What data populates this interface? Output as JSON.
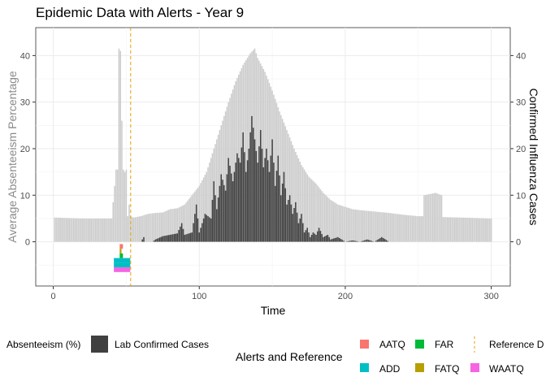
{
  "chart_data": {
    "type": "bar",
    "title": "Epidemic Data with Alerts - Year 9",
    "xlabel": "Time",
    "ylabel_left": "Average Absenteeism Percentage",
    "ylabel_right": "Confirmed Influenza Cases",
    "xlim": [
      -12,
      313
    ],
    "ylim": [
      -9.5,
      46
    ],
    "x_ticks": [
      0,
      100,
      200,
      300
    ],
    "y_ticks": [
      0,
      10,
      20,
      30,
      40
    ],
    "y_ticks_right": [
      0,
      10,
      20,
      30,
      40
    ],
    "grid": true,
    "reference_line": {
      "name": "Reference Date",
      "x": 53,
      "color": "#e69f00"
    },
    "absenteeism_keypoints": [
      [
        1,
        5.2
      ],
      [
        20,
        5.0
      ],
      [
        40,
        5.0
      ],
      [
        43,
        15.5
      ],
      [
        44,
        15.5
      ],
      [
        45,
        41.5
      ],
      [
        46,
        41.0
      ],
      [
        47,
        26.0
      ],
      [
        48,
        15.5
      ],
      [
        49,
        15.0
      ],
      [
        50,
        15.5
      ],
      [
        51,
        5.5
      ],
      [
        52,
        8.0
      ],
      [
        53,
        5.5
      ],
      [
        55,
        5.2
      ],
      [
        60,
        5.5
      ],
      [
        65,
        6.0
      ],
      [
        70,
        6.2
      ],
      [
        75,
        6.3
      ],
      [
        80,
        7.0
      ],
      [
        85,
        7.2
      ],
      [
        90,
        8.0
      ],
      [
        95,
        10.0
      ],
      [
        100,
        12.0
      ],
      [
        105,
        15.0
      ],
      [
        110,
        20.0
      ],
      [
        115,
        25.0
      ],
      [
        120,
        30.0
      ],
      [
        125,
        34.5
      ],
      [
        130,
        38.0
      ],
      [
        135,
        40.5
      ],
      [
        138,
        41.5
      ],
      [
        140,
        39.5
      ],
      [
        145,
        36.5
      ],
      [
        150,
        32.5
      ],
      [
        155,
        28.0
      ],
      [
        160,
        24.0
      ],
      [
        165,
        20.0
      ],
      [
        170,
        16.5
      ],
      [
        175,
        14.0
      ],
      [
        180,
        12.5
      ],
      [
        185,
        10.5
      ],
      [
        190,
        9.0
      ],
      [
        195,
        8.0
      ],
      [
        200,
        7.5
      ],
      [
        205,
        7.0
      ],
      [
        210,
        6.8
      ],
      [
        220,
        6.5
      ],
      [
        230,
        6.2
      ],
      [
        240,
        5.8
      ],
      [
        250,
        5.5
      ],
      [
        253,
        5.5
      ],
      [
        254,
        10.0
      ],
      [
        262,
        10.5
      ],
      [
        266,
        10.0
      ],
      [
        267,
        5.3
      ],
      [
        280,
        5.2
      ],
      [
        300,
        5.0
      ]
    ],
    "lab_cases_keypoints": [
      [
        1,
        0
      ],
      [
        60,
        0
      ],
      [
        62,
        1.0
      ],
      [
        63,
        0
      ],
      [
        65,
        0
      ],
      [
        68,
        0
      ],
      [
        70,
        0.5
      ],
      [
        75,
        1.2
      ],
      [
        80,
        1.5
      ],
      [
        85,
        1.8
      ],
      [
        88,
        4.0
      ],
      [
        90,
        1.5
      ],
      [
        95,
        2.0
      ],
      [
        98,
        8.0
      ],
      [
        100,
        2.0
      ],
      [
        104,
        6.0
      ],
      [
        108,
        5.0
      ],
      [
        110,
        13.0
      ],
      [
        112,
        7.0
      ],
      [
        115,
        14.5
      ],
      [
        118,
        11.0
      ],
      [
        120,
        18.0
      ],
      [
        123,
        13.0
      ],
      [
        126,
        19.0
      ],
      [
        128,
        17.0
      ],
      [
        130,
        23.5
      ],
      [
        132,
        15.0
      ],
      [
        134,
        20.0
      ],
      [
        136,
        27.0
      ],
      [
        138,
        22.0
      ],
      [
        140,
        17.0
      ],
      [
        142,
        24.0
      ],
      [
        144,
        16.0
      ],
      [
        146,
        20.0
      ],
      [
        148,
        15.0
      ],
      [
        150,
        22.0
      ],
      [
        152,
        12.0
      ],
      [
        154,
        18.5
      ],
      [
        156,
        10.0
      ],
      [
        158,
        15.0
      ],
      [
        160,
        8.0
      ],
      [
        162,
        10.0
      ],
      [
        164,
        6.0
      ],
      [
        166,
        8.5
      ],
      [
        168,
        4.0
      ],
      [
        170,
        6.0
      ],
      [
        172,
        2.0
      ],
      [
        174,
        3.0
      ],
      [
        176,
        1.0
      ],
      [
        178,
        2.0
      ],
      [
        180,
        1.5
      ],
      [
        182,
        3.0
      ],
      [
        185,
        1.0
      ],
      [
        188,
        1.5
      ],
      [
        190,
        0.5
      ],
      [
        195,
        1.0
      ],
      [
        200,
        0
      ],
      [
        205,
        0.3
      ],
      [
        210,
        0
      ],
      [
        215,
        0.5
      ],
      [
        220,
        0
      ],
      [
        225,
        1.0
      ],
      [
        230,
        0
      ],
      [
        300,
        0
      ]
    ],
    "alerts": {
      "title": "Alerts and Reference",
      "types": [
        {
          "name": "AATQ",
          "color": "#f8766d"
        },
        {
          "name": "ADD",
          "color": "#00bfc4"
        },
        {
          "name": "FAR",
          "color": "#00ba38"
        },
        {
          "name": "FATQ",
          "color": "#b79f00"
        },
        {
          "name": "WAATQ",
          "color": "#f564e3"
        }
      ],
      "points": [
        {
          "x": 46,
          "y": -1,
          "type": "AATQ"
        },
        {
          "x": 47,
          "y": -1,
          "type": "AATQ"
        },
        {
          "x": 46,
          "y": -2,
          "type": "FATQ"
        },
        {
          "x": 46,
          "y": -3,
          "type": "FAR"
        },
        {
          "x": 47,
          "y": -3,
          "type": "FAR"
        },
        {
          "x": 42,
          "y": -4,
          "type": "ADD"
        },
        {
          "x": 43,
          "y": -4,
          "type": "ADD"
        },
        {
          "x": 44,
          "y": -4,
          "type": "ADD"
        },
        {
          "x": 45,
          "y": -4,
          "type": "ADD"
        },
        {
          "x": 46,
          "y": -4,
          "type": "ADD"
        },
        {
          "x": 47,
          "y": -4,
          "type": "ADD"
        },
        {
          "x": 48,
          "y": -4,
          "type": "ADD"
        },
        {
          "x": 49,
          "y": -4,
          "type": "ADD"
        },
        {
          "x": 50,
          "y": -4,
          "type": "ADD"
        },
        {
          "x": 51,
          "y": -4,
          "type": "ADD"
        },
        {
          "x": 52,
          "y": -4,
          "type": "ADD"
        },
        {
          "x": 42,
          "y": -5,
          "type": "ADD"
        },
        {
          "x": 43,
          "y": -5,
          "type": "ADD"
        },
        {
          "x": 44,
          "y": -5,
          "type": "ADD"
        },
        {
          "x": 45,
          "y": -5,
          "type": "ADD"
        },
        {
          "x": 46,
          "y": -5,
          "type": "ADD"
        },
        {
          "x": 47,
          "y": -5,
          "type": "ADD"
        },
        {
          "x": 48,
          "y": -5,
          "type": "ADD"
        },
        {
          "x": 49,
          "y": -5,
          "type": "ADD"
        },
        {
          "x": 50,
          "y": -5,
          "type": "ADD"
        },
        {
          "x": 51,
          "y": -5,
          "type": "ADD"
        },
        {
          "x": 52,
          "y": -5,
          "type": "ADD"
        },
        {
          "x": 42,
          "y": -6,
          "type": "WAATQ"
        },
        {
          "x": 43,
          "y": -6,
          "type": "WAATQ"
        },
        {
          "x": 44,
          "y": -6,
          "type": "WAATQ"
        },
        {
          "x": 45,
          "y": -6,
          "type": "WAATQ"
        },
        {
          "x": 46,
          "y": -6,
          "type": "WAATQ"
        },
        {
          "x": 47,
          "y": -6,
          "type": "WAATQ"
        },
        {
          "x": 48,
          "y": -6,
          "type": "WAATQ"
        },
        {
          "x": 49,
          "y": -6,
          "type": "WAATQ"
        },
        {
          "x": 50,
          "y": -6,
          "type": "WAATQ"
        },
        {
          "x": 51,
          "y": -6,
          "type": "WAATQ"
        },
        {
          "x": 52,
          "y": -6,
          "type": "WAATQ"
        }
      ]
    },
    "legend": {
      "absenteeism_label": "Absenteeism (%)",
      "lab_label": "Lab Confirmed Cases",
      "reference_label": "Reference D",
      "absenteeism_color": "#cccccc",
      "lab_color": "#404040"
    }
  }
}
